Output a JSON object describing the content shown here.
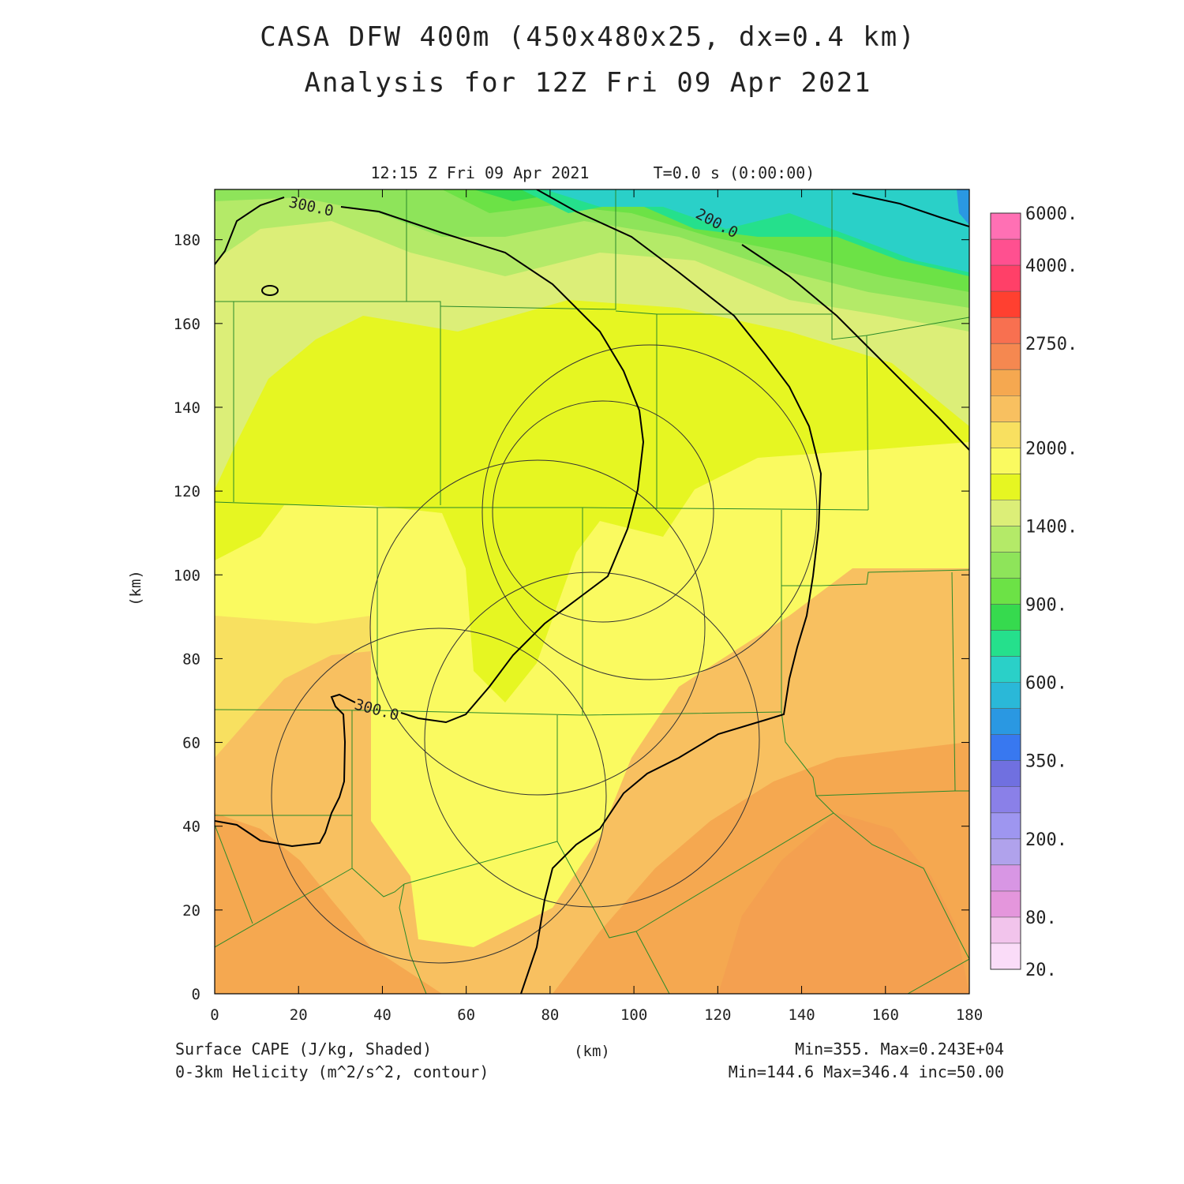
{
  "header": {
    "title": "CASA DFW 400m (450x480x25, dx=0.4 km)",
    "subtitle": "Analysis for 12Z Fri 09 Apr 2021",
    "timestamp": "12:15 Z Fri 09 Apr 2021",
    "elapsed": "T=0.0 s (0:00:00)"
  },
  "footer": {
    "field1": "Surface CAPE (J/kg, Shaded)",
    "field2": "0-3km Helicity (m^2/s^2, contour)",
    "xunit": "(km)",
    "stats1": "Min=355. Max=0.243E+04",
    "stats2": "Min=144.6 Max=346.4 inc=50.00"
  },
  "chart_data": {
    "type": "heatmap",
    "x_ticks": [
      "0",
      "20",
      "40",
      "60",
      "80",
      "100",
      "120",
      "140",
      "160",
      "180"
    ],
    "y_ticks": [
      "0",
      "20",
      "40",
      "60",
      "80",
      "100",
      "120",
      "140",
      "160",
      "180"
    ],
    "xlabel": "(km)",
    "ylabel": "(km)",
    "xlim": [
      0,
      180
    ],
    "ylim": [
      0,
      192
    ],
    "colorbar": {
      "labels": [
        "6000.",
        "4000.",
        "2750.",
        "2000.",
        "1400.",
        "900.",
        "600.",
        "350.",
        "200.",
        "80.",
        "20."
      ],
      "colors": [
        "#ff70b4",
        "#ff5090",
        "#ff4068",
        "#ff4030",
        "#f87050",
        "#f58850",
        "#f5a850",
        "#f8c060",
        "#f8e060",
        "#fafa60",
        "#e6f622",
        "#dcee78",
        "#b4ea68",
        "#8ee45a",
        "#6ce246",
        "#36da4e",
        "#25e08c",
        "#2ad0c8",
        "#2ab8d8",
        "#2a98e2",
        "#3878f0",
        "#7070e0",
        "#8a80e8",
        "#9e96f0",
        "#b0a2ec",
        "#d896e4",
        "#e496dc",
        "#f2c4ec",
        "#fadcf8"
      ]
    },
    "contours": [
      {
        "label": "300.0",
        "value": 300
      },
      {
        "label": "200.0",
        "value": 200
      },
      {
        "label": "300.0",
        "value": 300
      }
    ],
    "cape_range": {
      "min": 355,
      "max": 2430
    },
    "helicity_range": {
      "min": 144.6,
      "max": 346.4,
      "inc": 50.0
    },
    "grid": false
  }
}
